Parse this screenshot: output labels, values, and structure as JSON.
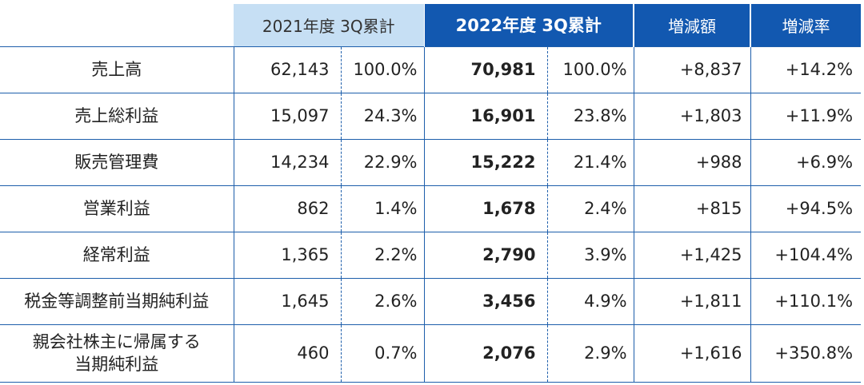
{
  "header": {
    "blank": "",
    "fy2021": "2021年度 3Q累計",
    "fy2022": "2022年度 3Q累計",
    "diff": "増減額",
    "rate": "増減率"
  },
  "rows": [
    {
      "label": [
        "売上高"
      ],
      "v2021": "62,143",
      "p2021": "100.0%",
      "v2022": "70,981",
      "p2022": "100.0%",
      "diff": "+8,837",
      "rate": "+14.2%"
    },
    {
      "label": [
        "売上総利益"
      ],
      "v2021": "15,097",
      "p2021": "24.3%",
      "v2022": "16,901",
      "p2022": "23.8%",
      "diff": "+1,803",
      "rate": "+11.9%"
    },
    {
      "label": [
        "販売管理費"
      ],
      "v2021": "14,234",
      "p2021": "22.9%",
      "v2022": "15,222",
      "p2022": "21.4%",
      "diff": "+988",
      "rate": "+6.9%"
    },
    {
      "label": [
        "営業利益"
      ],
      "v2021": "862",
      "p2021": "1.4%",
      "v2022": "1,678",
      "p2022": "2.4%",
      "diff": "+815",
      "rate": "+94.5%"
    },
    {
      "label": [
        "経常利益"
      ],
      "v2021": "1,365",
      "p2021": "2.2%",
      "v2022": "2,790",
      "p2022": "3.9%",
      "diff": "+1,425",
      "rate": "+104.4%"
    },
    {
      "label": [
        "税金等調整前当期純利益"
      ],
      "v2021": "1,645",
      "p2021": "2.6%",
      "v2022": "3,456",
      "p2022": "4.9%",
      "diff": "+1,811",
      "rate": "+110.1%"
    },
    {
      "label": [
        "親会社株主に帰属する",
        "当期純利益"
      ],
      "v2021": "460",
      "p2021": "0.7%",
      "v2022": "2,076",
      "p2022": "2.9%",
      "diff": "+1,616",
      "rate": "+350.8%"
    }
  ]
}
